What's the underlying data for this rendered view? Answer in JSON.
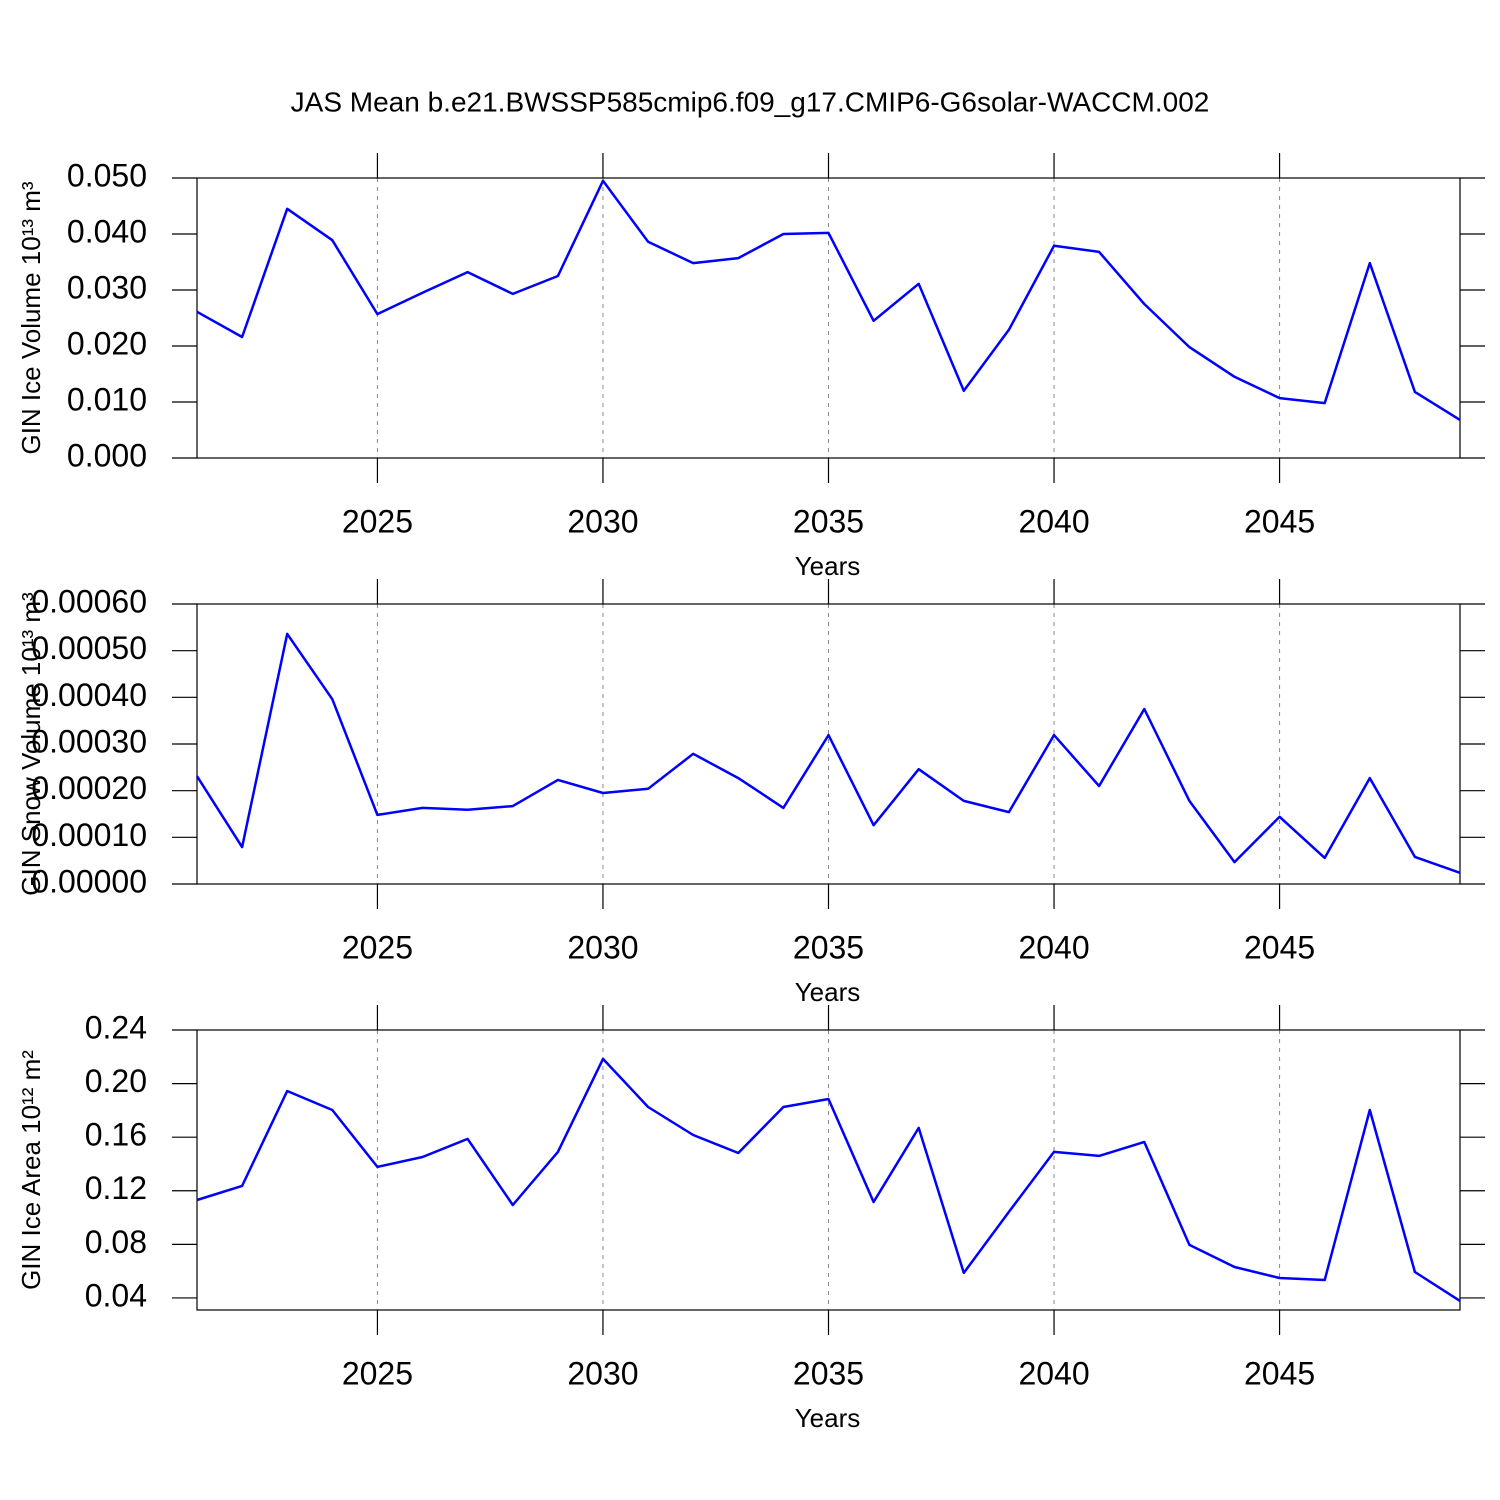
{
  "chart_data": [
    {
      "type": "line",
      "title": "JAS Mean b.e21.BWSSP585cmip6.f09_g17.CMIP6-G6solar-WACCM.002",
      "xlabel": "Years",
      "ylabel": "GIN Ice Volume 10¹³ m³",
      "x": [
        2021,
        2022,
        2023,
        2024,
        2025,
        2026,
        2027,
        2028,
        2029,
        2030,
        2031,
        2032,
        2033,
        2034,
        2035,
        2036,
        2037,
        2038,
        2039,
        2040,
        2041,
        2042,
        2043,
        2044,
        2045,
        2046,
        2047,
        2048,
        2049
      ],
      "values": [
        0.0261,
        0.0216,
        0.0445,
        0.0389,
        0.0257,
        0.0295,
        0.0332,
        0.0293,
        0.0325,
        0.0495,
        0.0386,
        0.0348,
        0.0357,
        0.04,
        0.0402,
        0.0245,
        0.0311,
        0.012,
        0.0229,
        0.0379,
        0.0368,
        0.0275,
        0.0198,
        0.0145,
        0.0107,
        0.0098,
        0.0348,
        0.0118,
        0.0068
      ],
      "color": "#0000ff",
      "xlim": [
        2021,
        2049
      ],
      "xticks": [
        2025,
        2030,
        2035,
        2040,
        2045
      ],
      "xgrid": true,
      "ylim": [
        0,
        0.05
      ],
      "yticks": [
        {
          "value": 0,
          "label": "0.000"
        },
        {
          "value": 0.01,
          "label": "0.010"
        },
        {
          "value": 0.02,
          "label": "0.020"
        },
        {
          "value": 0.03,
          "label": "0.030"
        },
        {
          "value": 0.04,
          "label": "0.040"
        },
        {
          "value": 0.05,
          "label": "0.050"
        }
      ]
    },
    {
      "type": "line",
      "xlabel": "Years",
      "ylabel": "GIN Snow Volume 10¹³ m³",
      "x": [
        2021,
        2022,
        2023,
        2024,
        2025,
        2026,
        2027,
        2028,
        2029,
        2030,
        2031,
        2032,
        2033,
        2034,
        2035,
        2036,
        2037,
        2038,
        2039,
        2040,
        2041,
        2042,
        2043,
        2044,
        2045,
        2046,
        2047,
        2048,
        2049
      ],
      "values": [
        0.000231,
        7.9e-05,
        0.000536,
        0.000396,
        0.000148,
        0.000163,
        0.000159,
        0.000167,
        0.000223,
        0.000195,
        0.000204,
        0.000279,
        0.000227,
        0.000163,
        0.000319,
        0.000126,
        0.000246,
        0.000178,
        0.000154,
        0.000319,
        0.00021,
        0.000375,
        0.000178,
        4.7e-05,
        0.000144,
        5.6e-05,
        0.000227,
        5.8e-05,
        2.4e-05
      ],
      "color": "#0000ff",
      "xlim": [
        2021,
        2049
      ],
      "xticks": [
        2025,
        2030,
        2035,
        2040,
        2045
      ],
      "xgrid": true,
      "ylim": [
        0,
        0.0006
      ],
      "yticks": [
        {
          "value": 0,
          "label": "0.00000"
        },
        {
          "value": 0.0001,
          "label": "0.00010"
        },
        {
          "value": 0.0002,
          "label": "0.00020"
        },
        {
          "value": 0.0003,
          "label": "0.00030"
        },
        {
          "value": 0.0004,
          "label": "0.00040"
        },
        {
          "value": 0.0005,
          "label": "0.00050"
        },
        {
          "value": 0.0006,
          "label": "0.00060"
        }
      ]
    },
    {
      "type": "line",
      "xlabel": "Years",
      "ylabel": "GIN Ice Area 10¹² m²",
      "x": [
        2021,
        2022,
        2023,
        2024,
        2025,
        2026,
        2027,
        2028,
        2029,
        2030,
        2031,
        2032,
        2033,
        2034,
        2035,
        2036,
        2037,
        2038,
        2039,
        2040,
        2041,
        2042,
        2043,
        2044,
        2045,
        2046,
        2047,
        2048,
        2049
      ],
      "values": [
        0.1131,
        0.1236,
        0.1945,
        0.1803,
        0.1378,
        0.1452,
        0.1587,
        0.1094,
        0.149,
        0.2184,
        0.1825,
        0.1616,
        0.1482,
        0.1825,
        0.1885,
        0.1116,
        0.1669,
        0.0587,
        0.1042,
        0.149,
        0.146,
        0.1564,
        0.0796,
        0.0631,
        0.0549,
        0.0534,
        0.1803,
        0.0594,
        0.0378
      ],
      "color": "#0000ff",
      "xlim": [
        2021,
        2049
      ],
      "xticks": [
        2025,
        2030,
        2035,
        2040,
        2045
      ],
      "xgrid": true,
      "ylim": [
        0.031,
        0.24
      ],
      "yticks": [
        0.04,
        0.08,
        0.12,
        0.16,
        {
          "value": 0.2,
          "label": "0.20"
        },
        0.24
      ]
    }
  ]
}
